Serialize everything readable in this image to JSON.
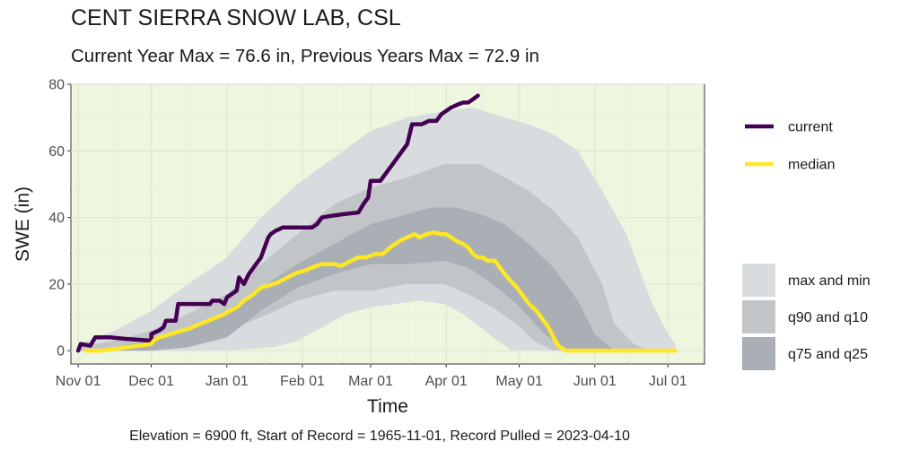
{
  "chart_data": {
    "type": "area",
    "title": "CENT SIERRA SNOW LAB, CSL",
    "subtitle": "Current Year Max = 76.6 in, Previous Years Max = 72.9 in",
    "caption": "Elevation = 6900 ft, Start of Record = 1965-11-01, Record Pulled = 2023-04-10",
    "xlabel": "Time",
    "ylabel": "SWE (in)",
    "xlim": [
      -3,
      257
    ],
    "ylim": [
      -4,
      80
    ],
    "x_unit": "days after Nov 01",
    "x_ticks": [
      {
        "x": 0,
        "label": "Nov 01"
      },
      {
        "x": 30,
        "label": "Dec 01"
      },
      {
        "x": 61,
        "label": "Jan 01"
      },
      {
        "x": 92,
        "label": "Feb 01"
      },
      {
        "x": 120,
        "label": "Mar 01"
      },
      {
        "x": 151,
        "label": "Apr 01"
      },
      {
        "x": 181,
        "label": "May 01"
      },
      {
        "x": 212,
        "label": "Jun 01"
      },
      {
        "x": 242,
        "label": "Jul 01"
      }
    ],
    "y_ticks": [
      0,
      20,
      40,
      60,
      80
    ],
    "grid": true,
    "panel_background": "#eef6df",
    "legend_position": "right",
    "legend_line_entries": [
      {
        "name": "current",
        "color": "#440154"
      },
      {
        "name": "median",
        "color": "#fde725"
      }
    ],
    "legend_fill_entries": [
      {
        "name": "max and min",
        "color": "#d9dcde"
      },
      {
        "name": "q90 and q10",
        "color": "#c1c5c8"
      },
      {
        "name": "q75 and q25",
        "color": "#a9afb4"
      }
    ],
    "bands": [
      {
        "name": "max and min",
        "color": "#d9dcde",
        "upper": [
          [
            0,
            2
          ],
          [
            15,
            6
          ],
          [
            30,
            12
          ],
          [
            45,
            20
          ],
          [
            61,
            28
          ],
          [
            75,
            40
          ],
          [
            90,
            50
          ],
          [
            105,
            58
          ],
          [
            120,
            66
          ],
          [
            135,
            70
          ],
          [
            151,
            72
          ],
          [
            162,
            73
          ],
          [
            175,
            70
          ],
          [
            185,
            68
          ],
          [
            195,
            65
          ],
          [
            205,
            60
          ],
          [
            215,
            48
          ],
          [
            225,
            35
          ],
          [
            235,
            15
          ],
          [
            242,
            5
          ],
          [
            245,
            2
          ]
        ],
        "lower": [
          [
            0,
            0
          ],
          [
            30,
            0
          ],
          [
            61,
            0
          ],
          [
            80,
            1
          ],
          [
            90,
            3
          ],
          [
            100,
            7
          ],
          [
            110,
            11
          ],
          [
            120,
            13
          ],
          [
            130,
            14
          ],
          [
            140,
            15
          ],
          [
            150,
            14
          ],
          [
            158,
            11
          ],
          [
            165,
            7
          ],
          [
            172,
            3
          ],
          [
            178,
            0
          ],
          [
            245,
            0
          ]
        ]
      },
      {
        "name": "q90 and q10",
        "color": "#c1c5c8",
        "upper": [
          [
            0,
            1
          ],
          [
            15,
            3
          ],
          [
            30,
            6
          ],
          [
            45,
            11
          ],
          [
            61,
            17
          ],
          [
            75,
            26
          ],
          [
            90,
            35
          ],
          [
            105,
            44
          ],
          [
            120,
            49
          ],
          [
            135,
            52
          ],
          [
            150,
            56
          ],
          [
            165,
            56
          ],
          [
            175,
            52
          ],
          [
            185,
            48
          ],
          [
            195,
            42
          ],
          [
            205,
            34
          ],
          [
            215,
            20
          ],
          [
            220,
            8
          ],
          [
            228,
            2
          ],
          [
            235,
            0
          ]
        ],
        "lower": [
          [
            0,
            0
          ],
          [
            30,
            0
          ],
          [
            45,
            2
          ],
          [
            61,
            6
          ],
          [
            75,
            10
          ],
          [
            90,
            15
          ],
          [
            105,
            18
          ],
          [
            120,
            18
          ],
          [
            135,
            20
          ],
          [
            150,
            20
          ],
          [
            160,
            17
          ],
          [
            170,
            13
          ],
          [
            180,
            8
          ],
          [
            187,
            3
          ],
          [
            195,
            0
          ],
          [
            235,
            0
          ]
        ]
      },
      {
        "name": "q75 and q25",
        "color": "#a9afb4",
        "upper": [
          [
            0,
            0
          ],
          [
            15,
            1
          ],
          [
            30,
            3
          ],
          [
            45,
            6
          ],
          [
            61,
            12
          ],
          [
            75,
            19
          ],
          [
            90,
            26
          ],
          [
            105,
            32
          ],
          [
            120,
            38
          ],
          [
            135,
            41
          ],
          [
            145,
            43
          ],
          [
            155,
            43
          ],
          [
            165,
            41
          ],
          [
            175,
            38
          ],
          [
            185,
            32
          ],
          [
            195,
            25
          ],
          [
            205,
            15
          ],
          [
            212,
            5
          ],
          [
            220,
            0
          ]
        ],
        "lower": [
          [
            0,
            0
          ],
          [
            30,
            0
          ],
          [
            45,
            1
          ],
          [
            61,
            4
          ],
          [
            75,
            12
          ],
          [
            90,
            19
          ],
          [
            105,
            23
          ],
          [
            120,
            26
          ],
          [
            135,
            26
          ],
          [
            150,
            27
          ],
          [
            160,
            25
          ],
          [
            170,
            20
          ],
          [
            180,
            14
          ],
          [
            190,
            6
          ],
          [
            198,
            1
          ],
          [
            205,
            0
          ],
          [
            220,
            0
          ]
        ]
      }
    ],
    "series": [
      {
        "name": "current",
        "color": "#440154",
        "stroke_width": 4.5,
        "points": [
          [
            0,
            0
          ],
          [
            1,
            2
          ],
          [
            5,
            1.5
          ],
          [
            7,
            4
          ],
          [
            13,
            4
          ],
          [
            20,
            3.5
          ],
          [
            30,
            3
          ],
          [
            30,
            5
          ],
          [
            33,
            6
          ],
          [
            35,
            7
          ],
          [
            36,
            9
          ],
          [
            38,
            9
          ],
          [
            40,
            9
          ],
          [
            41,
            14
          ],
          [
            45,
            14
          ],
          [
            50,
            14
          ],
          [
            54,
            14
          ],
          [
            55,
            15
          ],
          [
            58,
            15
          ],
          [
            60,
            14
          ],
          [
            61,
            16
          ],
          [
            63,
            17
          ],
          [
            65,
            18
          ],
          [
            66,
            22
          ],
          [
            68,
            20
          ],
          [
            70,
            23
          ],
          [
            73,
            26
          ],
          [
            75,
            28
          ],
          [
            77,
            32
          ],
          [
            78,
            34
          ],
          [
            79,
            35
          ],
          [
            81,
            36
          ],
          [
            84,
            37
          ],
          [
            90,
            37
          ],
          [
            96,
            37
          ],
          [
            98,
            38
          ],
          [
            100,
            40
          ],
          [
            104,
            40.5
          ],
          [
            109,
            41
          ],
          [
            115,
            41.5
          ],
          [
            117,
            44
          ],
          [
            119,
            46
          ],
          [
            120,
            51
          ],
          [
            124,
            51
          ],
          [
            125,
            52
          ],
          [
            129,
            56
          ],
          [
            132,
            59
          ],
          [
            135,
            62
          ],
          [
            136,
            65
          ],
          [
            137,
            68
          ],
          [
            141,
            68
          ],
          [
            144,
            69
          ],
          [
            147,
            69
          ],
          [
            149,
            71
          ],
          [
            150,
            71.5
          ],
          [
            153,
            73
          ],
          [
            156,
            74
          ],
          [
            158,
            74.5
          ],
          [
            160,
            74.5
          ],
          [
            162,
            75.5
          ],
          [
            164,
            76.6
          ]
        ]
      },
      {
        "name": "median",
        "color": "#fde725",
        "stroke_width": 4.5,
        "points": [
          [
            3,
            0
          ],
          [
            10,
            0
          ],
          [
            20,
            1
          ],
          [
            30,
            2
          ],
          [
            31,
            3
          ],
          [
            33,
            4
          ],
          [
            36,
            4.5
          ],
          [
            40,
            5.5
          ],
          [
            45,
            6.5
          ],
          [
            50,
            8
          ],
          [
            55,
            9.5
          ],
          [
            60,
            11
          ],
          [
            61,
            11.5
          ],
          [
            65,
            13
          ],
          [
            68,
            15
          ],
          [
            70,
            16
          ],
          [
            72,
            17
          ],
          [
            75,
            19
          ],
          [
            78,
            19.5
          ],
          [
            82,
            20.5
          ],
          [
            86,
            22
          ],
          [
            90,
            23.5
          ],
          [
            93,
            24
          ],
          [
            96,
            25
          ],
          [
            100,
            26
          ],
          [
            105,
            26
          ],
          [
            108,
            25.5
          ],
          [
            112,
            27
          ],
          [
            115,
            28
          ],
          [
            118,
            28
          ],
          [
            120,
            28.5
          ],
          [
            122,
            29
          ],
          [
            125,
            29
          ],
          [
            128,
            31
          ],
          [
            130,
            32
          ],
          [
            132,
            33
          ],
          [
            135,
            34
          ],
          [
            138,
            35
          ],
          [
            140,
            34
          ],
          [
            143,
            35
          ],
          [
            146,
            35.5
          ],
          [
            149,
            35
          ],
          [
            151,
            35
          ],
          [
            153,
            34
          ],
          [
            155,
            33
          ],
          [
            158,
            32
          ],
          [
            160,
            31
          ],
          [
            162,
            29
          ],
          [
            164,
            28
          ],
          [
            166,
            28
          ],
          [
            168,
            27
          ],
          [
            171,
            27
          ],
          [
            173,
            25
          ],
          [
            175,
            23
          ],
          [
            178,
            20.5
          ],
          [
            180,
            19
          ],
          [
            183,
            16
          ],
          [
            185,
            14
          ],
          [
            188,
            12
          ],
          [
            190,
            10
          ],
          [
            193,
            7
          ],
          [
            195,
            4
          ],
          [
            197,
            1.5
          ],
          [
            200,
            0
          ],
          [
            210,
            0
          ],
          [
            230,
            0
          ],
          [
            245,
            0
          ]
        ]
      }
    ]
  }
}
